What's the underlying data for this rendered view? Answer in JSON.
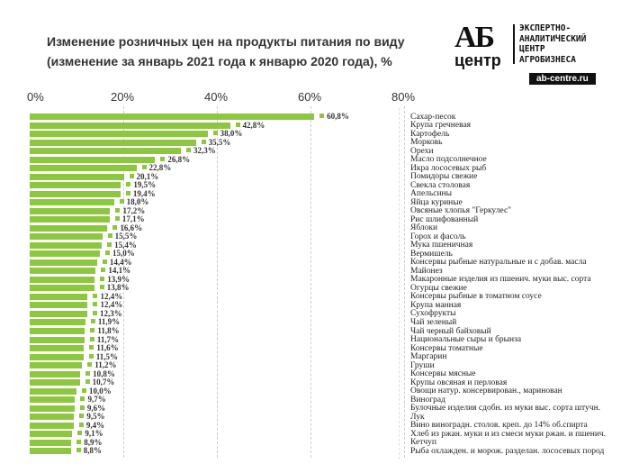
{
  "chart_data": {
    "type": "bar",
    "orientation": "horizontal",
    "title": "Изменение розничных цен на продукты питания по виду",
    "subtitle": "(изменение за январь 2021 года к январю 2020 года), %",
    "xlim": [
      0,
      80
    ],
    "xticks": [
      "0%",
      "20%",
      "40%",
      "60%",
      "80%"
    ],
    "categories": [
      "Сахар-песок",
      "Крупа гречневая",
      "Картофель",
      "Морковь",
      "Орехи",
      "Масло подсолнечное",
      "Икра лососевых рыб",
      "Помидоры свежие",
      "Свекла столовая",
      "Апельсины",
      "Яйца куриные",
      "Овсяные хлопья \"Геркулес\"",
      "Рис шлифованный",
      "Яблоки",
      "Горох и фасоль",
      "Мука пшеничная",
      "Вермишель",
      "Консервы рыбные натуральные и с добав. масла",
      "Майонез",
      "Макаронные изделия из пшенич. муки выс. сорта",
      "Огурцы свежие",
      "Консервы рыбные в томатном соусе",
      "Крупа манная",
      "Сухофрукты",
      "Чай зеленый",
      "Чай черный байховый",
      "Национальные сыры и брынза",
      "Консервы томатные",
      "Маргарин",
      "Груши",
      "Консервы мясные",
      "Крупы овсяная и перловая",
      "Овощи натур. консервирован., маринован",
      "Виноград",
      "Булочные изделия сдобн. из муки выс. сорта штучн.",
      "Лук",
      "Вино виноградн. столов. креп. до 14% об.спирта",
      "Хлеб из ржан. муки и из смеси муки ржан. и пшенич.",
      "Кетчуп",
      "Рыба охлажден. и морож. разделан. лососевых пород"
    ],
    "values": [
      60.8,
      42.8,
      38.0,
      35.5,
      32.3,
      26.8,
      22.8,
      20.1,
      19.5,
      19.4,
      18.0,
      17.2,
      17.1,
      16.6,
      15.5,
      15.4,
      15.0,
      14.4,
      14.1,
      13.9,
      13.8,
      12.4,
      12.4,
      12.3,
      11.9,
      11.8,
      11.7,
      11.6,
      11.5,
      11.2,
      10.8,
      10.7,
      10.0,
      9.7,
      9.6,
      9.5,
      9.4,
      9.1,
      8.9,
      8.8
    ],
    "value_labels": [
      "60,8%",
      "42,8%",
      "38,0%",
      "35,5%",
      "32,3%",
      "26,8%",
      "22,8%",
      "20,1%",
      "19,5%",
      "19,4%",
      "18,0%",
      "17,2%",
      "17,1%",
      "16,6%",
      "15,5%",
      "15,4%",
      "15,0%",
      "14,4%",
      "14,1%",
      "13,9%",
      "13,8%",
      "12,4%",
      "12,4%",
      "12,3%",
      "11,9%",
      "11,8%",
      "11,7%",
      "11,6%",
      "11,5%",
      "11,2%",
      "10,8%",
      "10,7%",
      "10,0%",
      "9,7%",
      "9,6%",
      "9,5%",
      "9,4%",
      "9,1%",
      "8,9%",
      "8,8%"
    ],
    "color": "#8dc63f",
    "grid": true
  },
  "logo": {
    "ab": "АБ",
    "centr": "центр",
    "lines": [
      "ЭКСПЕРТНО-",
      "АНАЛИТИЧЕСКИЙ",
      "ЦЕНТР",
      "АГРОБИЗНЕСА"
    ],
    "url": "ab-centre.ru"
  }
}
